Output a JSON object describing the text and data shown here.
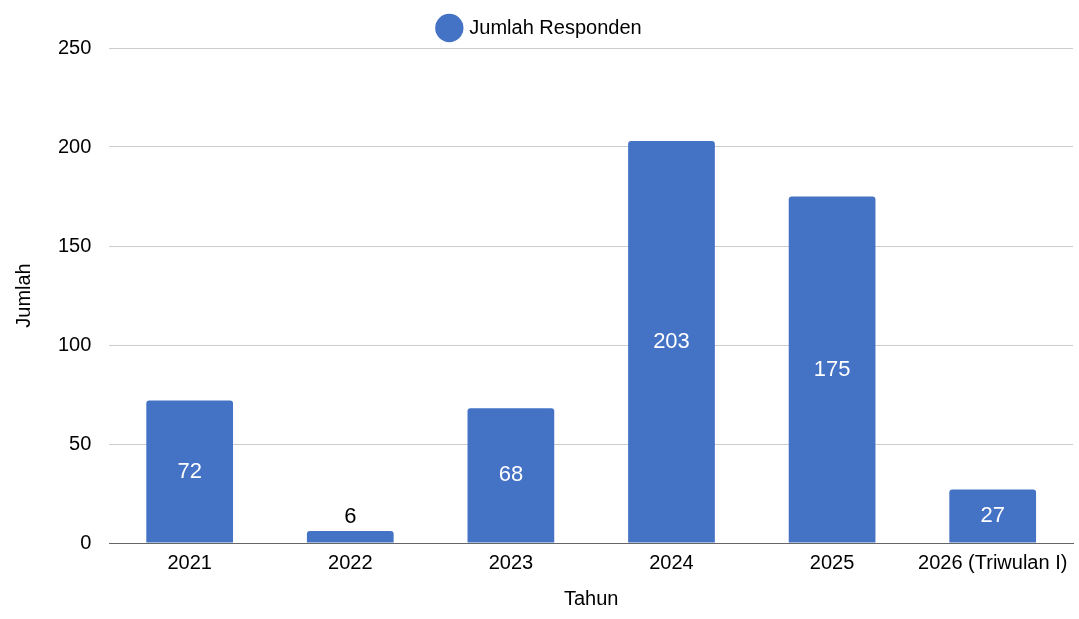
{
  "chart_data": {
    "type": "bar",
    "xlabel": "Tahun",
    "ylabel": "Jumlah",
    "categories": [
      "2021",
      "2022",
      "2023",
      "2024",
      "2025",
      "2026 (Triwulan I)"
    ],
    "series": [
      {
        "name": "Jumlah Responden",
        "color": "#4472c4",
        "values": [
          72,
          6,
          68,
          203,
          175,
          27
        ]
      }
    ],
    "ylim": [
      0,
      250
    ],
    "yticks": [
      0,
      50,
      100,
      150,
      200,
      250
    ],
    "grid": "y",
    "legend": "top",
    "data_labels": true
  }
}
